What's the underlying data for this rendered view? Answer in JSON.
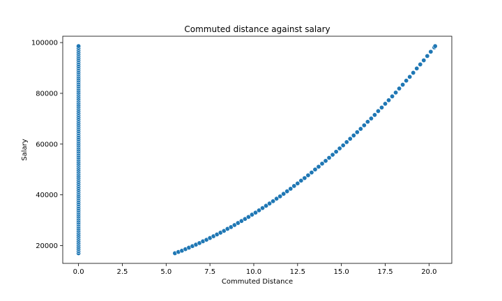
{
  "chart_data": {
    "type": "scatter",
    "title": "Commuted distance against salary",
    "xlabel": "Commuted Distance",
    "ylabel": "Salary",
    "xlim": [
      -0.9,
      21.3
    ],
    "ylim": [
      13000,
      102500
    ],
    "xticks": [
      0.0,
      2.5,
      5.0,
      7.5,
      10.0,
      12.5,
      15.0,
      17.5,
      20.0
    ],
    "xtick_labels": [
      "0.0",
      "2.5",
      "5.0",
      "7.5",
      "10.0",
      "12.5",
      "15.0",
      "17.5",
      "20.0"
    ],
    "yticks": [
      20000,
      40000,
      60000,
      80000,
      100000
    ],
    "ytick_labels": [
      "20000",
      "40000",
      "60000",
      "80000",
      "100000"
    ],
    "grid": false,
    "marker_color": "#1f77b4",
    "series": [
      {
        "points": [
          [
            0,
            17000
          ],
          [
            0,
            17800
          ],
          [
            0,
            18600
          ],
          [
            0,
            19400
          ],
          [
            0,
            20200
          ],
          [
            0,
            21000
          ],
          [
            0,
            21800
          ],
          [
            0,
            22600
          ],
          [
            0,
            23400
          ],
          [
            0,
            24200
          ],
          [
            0,
            25000
          ],
          [
            0,
            25800
          ],
          [
            0,
            26600
          ],
          [
            0,
            27400
          ],
          [
            0,
            28200
          ],
          [
            0,
            29000
          ],
          [
            0,
            29800
          ],
          [
            0,
            30600
          ],
          [
            0,
            31400
          ],
          [
            0,
            32200
          ],
          [
            0,
            33000
          ],
          [
            0,
            33800
          ],
          [
            0,
            34600
          ],
          [
            0,
            35400
          ],
          [
            0,
            36200
          ],
          [
            0,
            37000
          ],
          [
            0,
            37800
          ],
          [
            0,
            38600
          ],
          [
            0,
            39400
          ],
          [
            0,
            40200
          ],
          [
            0,
            41000
          ],
          [
            0,
            41800
          ],
          [
            0,
            42600
          ],
          [
            0,
            43400
          ],
          [
            0,
            44200
          ],
          [
            0,
            45000
          ],
          [
            0,
            45800
          ],
          [
            0,
            46600
          ],
          [
            0,
            47400
          ],
          [
            0,
            48200
          ],
          [
            0,
            49000
          ],
          [
            0,
            49800
          ],
          [
            0,
            50600
          ],
          [
            0,
            51400
          ],
          [
            0,
            52200
          ],
          [
            0,
            53000
          ],
          [
            0,
            53800
          ],
          [
            0,
            54600
          ],
          [
            0,
            55400
          ],
          [
            0,
            56200
          ],
          [
            0,
            57000
          ],
          [
            0,
            57800
          ],
          [
            0,
            58600
          ],
          [
            0,
            59400
          ],
          [
            0,
            60200
          ],
          [
            0,
            61000
          ],
          [
            0,
            61800
          ],
          [
            0,
            62600
          ],
          [
            0,
            63400
          ],
          [
            0,
            64200
          ],
          [
            0,
            65000
          ],
          [
            0,
            65800
          ],
          [
            0,
            66600
          ],
          [
            0,
            67400
          ],
          [
            0,
            68200
          ],
          [
            0,
            69000
          ],
          [
            0,
            69800
          ],
          [
            0,
            70600
          ],
          [
            0,
            71400
          ],
          [
            0,
            72200
          ],
          [
            0,
            73000
          ],
          [
            0,
            73800
          ],
          [
            0,
            74600
          ],
          [
            0,
            75400
          ],
          [
            0,
            76200
          ],
          [
            0,
            77000
          ],
          [
            0,
            77800
          ],
          [
            0,
            78600
          ],
          [
            0,
            79400
          ],
          [
            0,
            80200
          ],
          [
            0,
            81000
          ],
          [
            0,
            81800
          ],
          [
            0,
            82600
          ],
          [
            0,
            83400
          ],
          [
            0,
            84200
          ],
          [
            0,
            85000
          ],
          [
            0,
            85800
          ],
          [
            0,
            86600
          ],
          [
            0,
            87400
          ],
          [
            0,
            88200
          ],
          [
            0,
            89000
          ],
          [
            0,
            89800
          ],
          [
            0,
            90600
          ],
          [
            0,
            91400
          ],
          [
            0,
            92200
          ],
          [
            0,
            93000
          ],
          [
            0,
            93800
          ],
          [
            0,
            94600
          ],
          [
            0,
            95400
          ],
          [
            0,
            96200
          ],
          [
            0,
            97000
          ],
          [
            0,
            97800
          ],
          [
            0,
            98600
          ],
          [
            5.5,
            17000
          ],
          [
            5.7,
            17500
          ],
          [
            5.9,
            18000
          ],
          [
            6.1,
            18600
          ],
          [
            6.3,
            19200
          ],
          [
            6.5,
            19800
          ],
          [
            6.7,
            20400
          ],
          [
            6.9,
            21000
          ],
          [
            7.1,
            21700
          ],
          [
            7.3,
            22300
          ],
          [
            7.5,
            23000
          ],
          [
            7.7,
            23700
          ],
          [
            7.9,
            24400
          ],
          [
            8.1,
            25100
          ],
          [
            8.3,
            25800
          ],
          [
            8.5,
            26600
          ],
          [
            8.7,
            27300
          ],
          [
            8.9,
            28100
          ],
          [
            9.1,
            28900
          ],
          [
            9.3,
            29700
          ],
          [
            9.5,
            30500
          ],
          [
            9.7,
            31300
          ],
          [
            9.9,
            32200
          ],
          [
            10.1,
            33000
          ],
          [
            10.3,
            33900
          ],
          [
            10.5,
            34800
          ],
          [
            10.7,
            35700
          ],
          [
            10.9,
            36600
          ],
          [
            11.1,
            37500
          ],
          [
            11.3,
            38500
          ],
          [
            11.5,
            39400
          ],
          [
            11.7,
            40400
          ],
          [
            11.9,
            41400
          ],
          [
            12.1,
            42400
          ],
          [
            12.3,
            43500
          ],
          [
            12.5,
            44500
          ],
          [
            12.7,
            45600
          ],
          [
            12.9,
            46600
          ],
          [
            13.1,
            47700
          ],
          [
            13.3,
            48800
          ],
          [
            13.5,
            50000
          ],
          [
            13.7,
            51100
          ],
          [
            13.9,
            52300
          ],
          [
            14.1,
            53400
          ],
          [
            14.3,
            54600
          ],
          [
            14.5,
            55800
          ],
          [
            14.7,
            57000
          ],
          [
            14.9,
            58300
          ],
          [
            15.1,
            59500
          ],
          [
            15.3,
            60800
          ],
          [
            15.5,
            62100
          ],
          [
            15.7,
            63400
          ],
          [
            15.9,
            64700
          ],
          [
            16.1,
            66000
          ],
          [
            16.3,
            67400
          ],
          [
            16.5,
            68800
          ],
          [
            16.7,
            70100
          ],
          [
            16.9,
            71500
          ],
          [
            17.1,
            73000
          ],
          [
            17.3,
            74400
          ],
          [
            17.5,
            75900
          ],
          [
            17.7,
            77300
          ],
          [
            17.9,
            78800
          ],
          [
            18.1,
            80300
          ],
          [
            18.3,
            81900
          ],
          [
            18.5,
            83400
          ],
          [
            18.7,
            85000
          ],
          [
            18.9,
            86500
          ],
          [
            19.1,
            88100
          ],
          [
            19.3,
            89800
          ],
          [
            19.5,
            91400
          ],
          [
            19.7,
            93000
          ],
          [
            19.9,
            94700
          ],
          [
            20.1,
            96400
          ],
          [
            20.3,
            98100
          ],
          [
            20.35,
            98600
          ]
        ]
      }
    ]
  }
}
